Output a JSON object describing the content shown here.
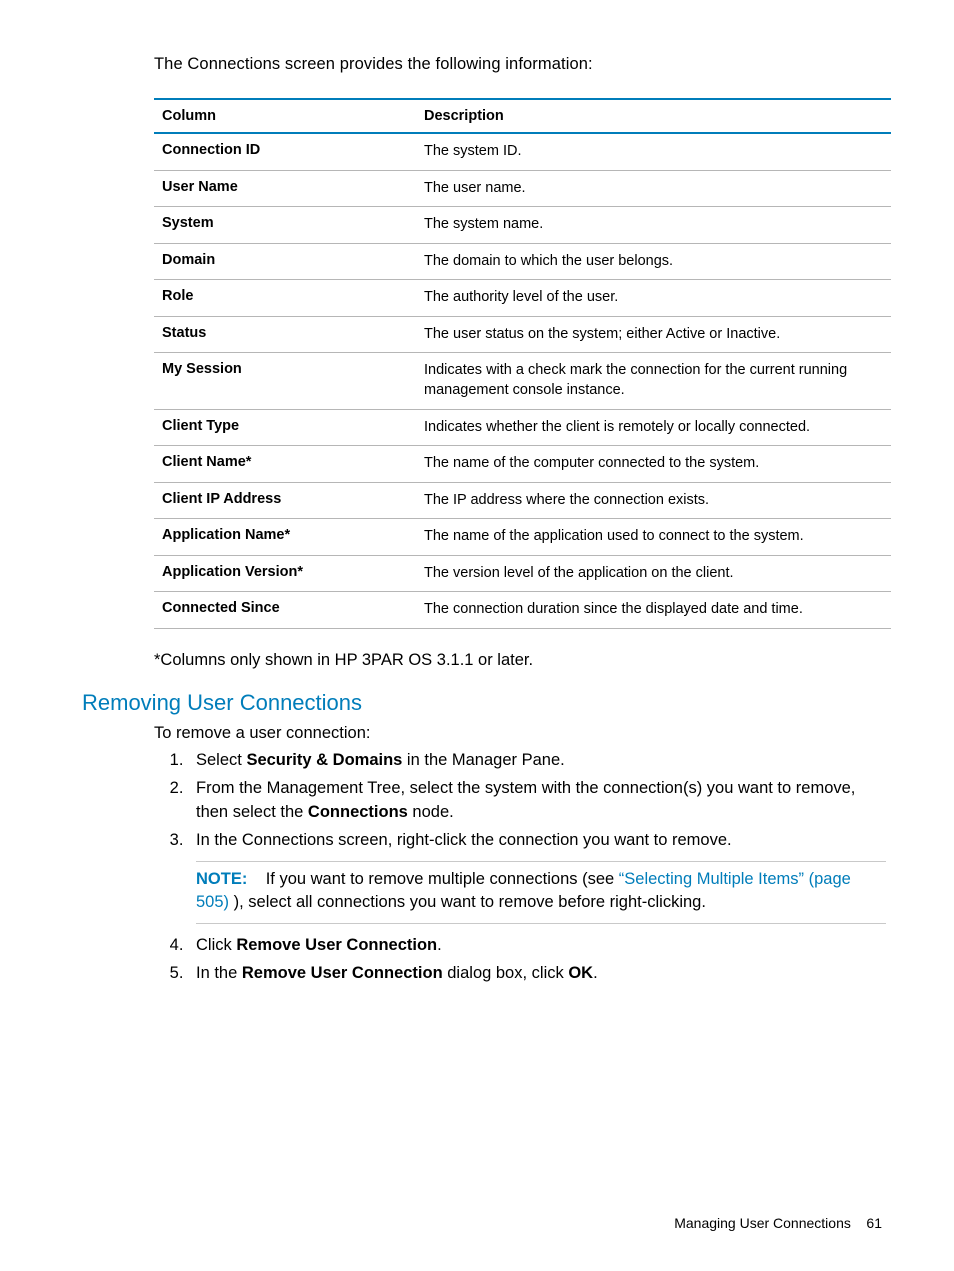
{
  "intro": "The Connections screen provides the following information:",
  "table": {
    "header": {
      "c1": "Column",
      "c2": "Description"
    },
    "rows": [
      {
        "c1": "Connection ID",
        "c2": "The system ID."
      },
      {
        "c1": "User Name",
        "c2": "The user name."
      },
      {
        "c1": "System",
        "c2": "The system name."
      },
      {
        "c1": "Domain",
        "c2": "The domain to which the user belongs."
      },
      {
        "c1": "Role",
        "c2": "The authority level of the user."
      },
      {
        "c1": "Status",
        "c2": "The user status on the system; either Active or Inactive."
      },
      {
        "c1": "My Session",
        "c2": "Indicates with a check mark the connection for the current running management console instance."
      },
      {
        "c1": "Client Type",
        "c2": "Indicates whether the client is remotely or locally connected."
      },
      {
        "c1": "Client Name*",
        "c2": "The name of the computer connected to the system."
      },
      {
        "c1": "Client IP Address",
        "c2": "The IP address where the connection exists."
      },
      {
        "c1": "Application Name*",
        "c2": "The name of the application used to connect to the system."
      },
      {
        "c1": "Application Version*",
        "c2": "The version level of the application on the client."
      },
      {
        "c1": "Connected Since",
        "c2": "The connection duration since the displayed date and time."
      }
    ]
  },
  "footnote": "*Columns only shown in HP 3PAR OS 3.1.1 or later.",
  "section_title": "Removing User Connections",
  "lead": "To remove a user connection:",
  "steps": {
    "s1": {
      "a": "Select ",
      "b": "Security & Domains",
      "c": " in the Manager Pane."
    },
    "s2": {
      "a": "From the Management Tree, select the system with the connection(s) you want to remove, then select the ",
      "b": "Connections",
      "c": " node."
    },
    "s3": {
      "a": "In the Connections screen, right-click the connection you want to remove."
    },
    "note": {
      "label": "NOTE:",
      "a": "If you want to remove multiple connections (see ",
      "link": "“Selecting Multiple Items” (page 505)",
      "b": " ), select all connections you want to remove before right-clicking."
    },
    "s4": {
      "a": "Click ",
      "b": "Remove User Connection",
      "c": "."
    },
    "s5": {
      "a": "In the ",
      "b": "Remove User Connection",
      "c": " dialog box, click ",
      "d": "OK",
      "e": "."
    }
  },
  "footer": {
    "title": "Managing User Connections",
    "page": "61"
  },
  "colors": {
    "accent": "#007dba"
  }
}
